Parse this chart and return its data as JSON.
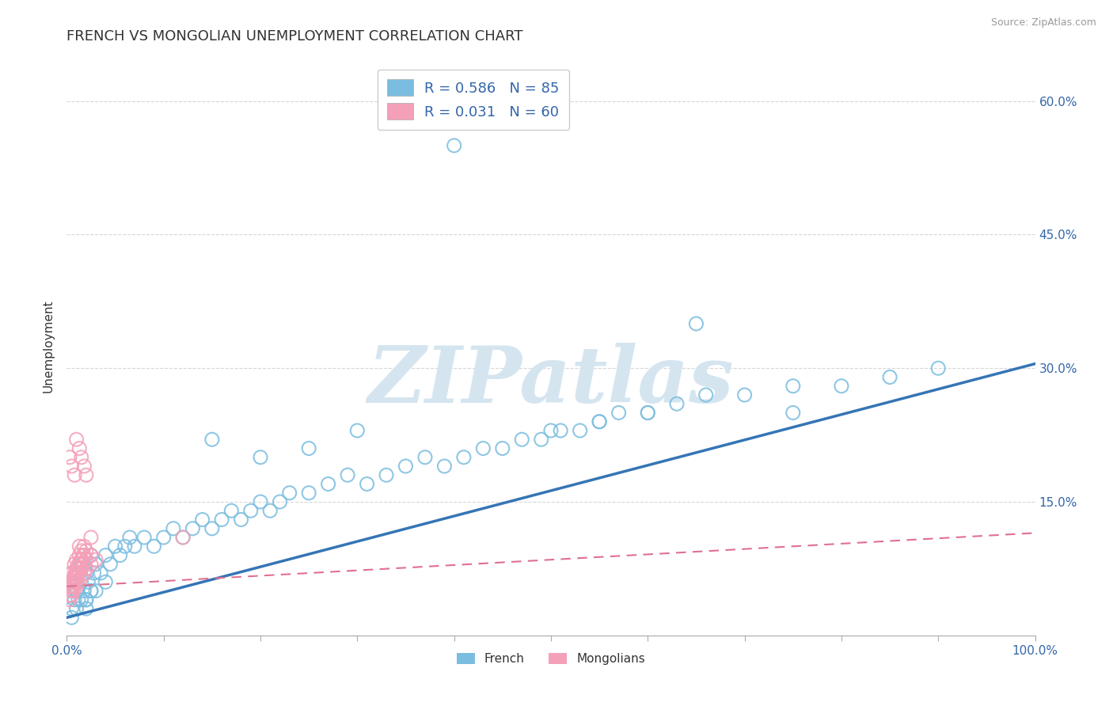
{
  "title": "FRENCH VS MONGOLIAN UNEMPLOYMENT CORRELATION CHART",
  "source_text": "Source: ZipAtlas.com",
  "ylabel": "Unemployment",
  "xlim": [
    0.0,
    1.0
  ],
  "ylim": [
    0.0,
    0.65
  ],
  "xticks": [
    0.0,
    0.1,
    0.2,
    0.3,
    0.4,
    0.5,
    0.6,
    0.7,
    0.8,
    0.9,
    1.0
  ],
  "xticklabels": [
    "0.0%",
    "",
    "",
    "",
    "",
    "",
    "",
    "",
    "",
    "",
    "100.0%"
  ],
  "yticks": [
    0.0,
    0.15,
    0.3,
    0.45,
    0.6
  ],
  "yticklabels_right": [
    "",
    "15.0%",
    "30.0%",
    "45.0%",
    "60.0%"
  ],
  "french_R": 0.586,
  "french_N": 85,
  "mongolian_R": 0.031,
  "mongolian_N": 60,
  "french_color": "#7bbde0",
  "mongolian_color": "#f4a0b8",
  "french_line_color": "#3575b5",
  "mongolian_line_color": "#e07090",
  "background_color": "#ffffff",
  "grid_color": "#cccccc",
  "title_color": "#333333",
  "watermark_text": "ZIPatlas",
  "watermark_color": "#d5e5f0",
  "legend_label_french": "French",
  "legend_label_mongolian": "Mongolians",
  "french_line_start_y": 0.02,
  "french_line_end_y": 0.305,
  "mongolian_line_start_y": 0.055,
  "mongolian_line_end_y": 0.115,
  "french_scatter_x": [
    0.005,
    0.008,
    0.01,
    0.012,
    0.015,
    0.018,
    0.02,
    0.022,
    0.025,
    0.028,
    0.005,
    0.01,
    0.015,
    0.02,
    0.025,
    0.03,
    0.035,
    0.04,
    0.045,
    0.05,
    0.005,
    0.01,
    0.015,
    0.02,
    0.025,
    0.055,
    0.06,
    0.065,
    0.07,
    0.08,
    0.09,
    0.1,
    0.11,
    0.12,
    0.13,
    0.14,
    0.15,
    0.16,
    0.17,
    0.18,
    0.19,
    0.2,
    0.21,
    0.22,
    0.23,
    0.25,
    0.27,
    0.29,
    0.31,
    0.33,
    0.35,
    0.37,
    0.39,
    0.41,
    0.43,
    0.45,
    0.47,
    0.49,
    0.51,
    0.53,
    0.55,
    0.57,
    0.6,
    0.63,
    0.66,
    0.7,
    0.75,
    0.8,
    0.85,
    0.9,
    0.005,
    0.01,
    0.02,
    0.03,
    0.04,
    0.4,
    0.15,
    0.2,
    0.25,
    0.3,
    0.5,
    0.55,
    0.6,
    0.65,
    0.75
  ],
  "french_scatter_y": [
    0.03,
    0.04,
    0.05,
    0.04,
    0.06,
    0.05,
    0.04,
    0.06,
    0.05,
    0.07,
    0.07,
    0.06,
    0.08,
    0.07,
    0.09,
    0.08,
    0.07,
    0.09,
    0.08,
    0.1,
    0.02,
    0.03,
    0.04,
    0.03,
    0.05,
    0.09,
    0.1,
    0.11,
    0.1,
    0.11,
    0.1,
    0.11,
    0.12,
    0.11,
    0.12,
    0.13,
    0.12,
    0.13,
    0.14,
    0.13,
    0.14,
    0.15,
    0.14,
    0.15,
    0.16,
    0.16,
    0.17,
    0.18,
    0.17,
    0.18,
    0.19,
    0.2,
    0.19,
    0.2,
    0.21,
    0.21,
    0.22,
    0.22,
    0.23,
    0.23,
    0.24,
    0.25,
    0.25,
    0.26,
    0.27,
    0.27,
    0.28,
    0.28,
    0.29,
    0.3,
    0.06,
    0.05,
    0.04,
    0.05,
    0.06,
    0.55,
    0.22,
    0.2,
    0.21,
    0.23,
    0.23,
    0.24,
    0.25,
    0.35,
    0.25
  ],
  "mongolian_scatter_x": [
    0.003,
    0.005,
    0.005,
    0.007,
    0.008,
    0.008,
    0.01,
    0.01,
    0.01,
    0.012,
    0.012,
    0.013,
    0.013,
    0.015,
    0.015,
    0.015,
    0.017,
    0.018,
    0.018,
    0.02,
    0.003,
    0.005,
    0.007,
    0.008,
    0.01,
    0.012,
    0.013,
    0.015,
    0.017,
    0.02,
    0.003,
    0.005,
    0.007,
    0.008,
    0.01,
    0.012,
    0.015,
    0.017,
    0.02,
    0.025,
    0.003,
    0.005,
    0.007,
    0.01,
    0.012,
    0.015,
    0.018,
    0.02,
    0.025,
    0.03,
    0.003,
    0.005,
    0.008,
    0.01,
    0.013,
    0.015,
    0.018,
    0.02,
    0.025,
    0.12
  ],
  "mongolian_scatter_y": [
    0.055,
    0.06,
    0.07,
    0.065,
    0.07,
    0.08,
    0.065,
    0.075,
    0.085,
    0.07,
    0.08,
    0.09,
    0.1,
    0.075,
    0.085,
    0.095,
    0.08,
    0.09,
    0.1,
    0.085,
    0.05,
    0.055,
    0.06,
    0.065,
    0.07,
    0.075,
    0.08,
    0.085,
    0.09,
    0.095,
    0.045,
    0.05,
    0.055,
    0.06,
    0.065,
    0.07,
    0.075,
    0.08,
    0.085,
    0.09,
    0.04,
    0.045,
    0.05,
    0.055,
    0.06,
    0.065,
    0.07,
    0.075,
    0.08,
    0.085,
    0.2,
    0.19,
    0.18,
    0.22,
    0.21,
    0.2,
    0.19,
    0.18,
    0.11,
    0.11
  ]
}
